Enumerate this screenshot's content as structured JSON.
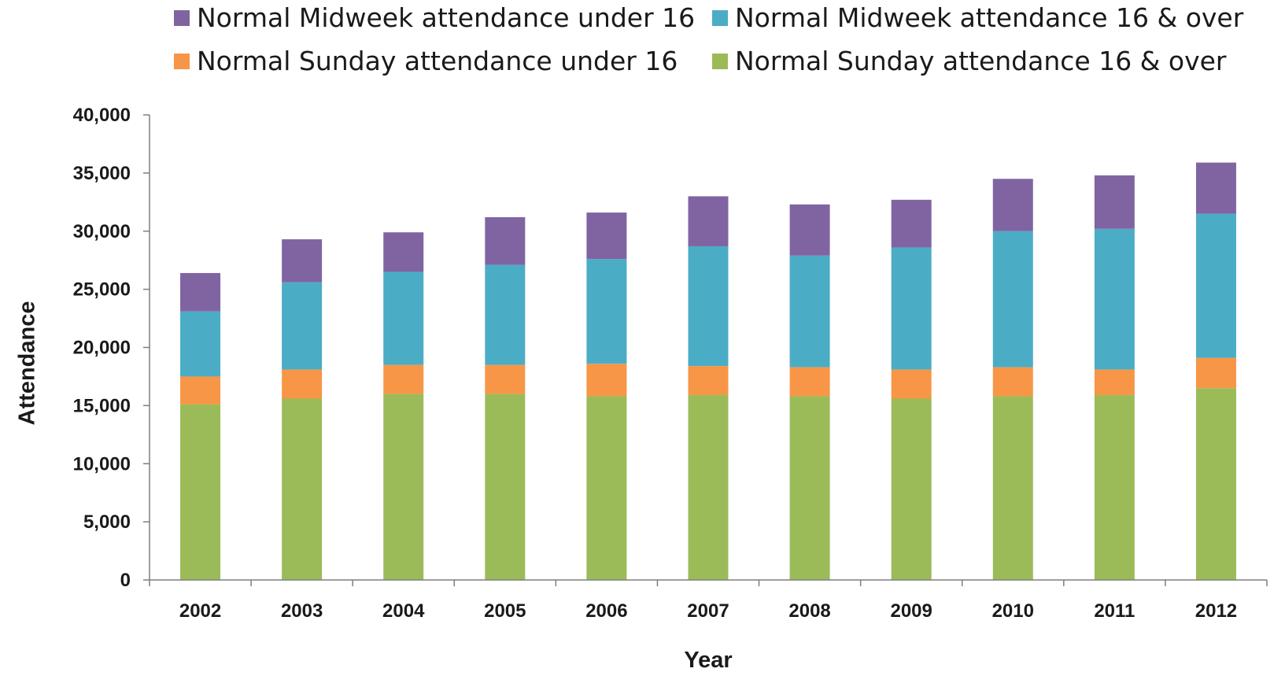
{
  "chart_data": {
    "type": "bar",
    "stacked": true,
    "title": "",
    "xlabel": "Year",
    "ylabel": "Attendance",
    "ylim": [
      0,
      40000
    ],
    "yticks": [
      0,
      5000,
      10000,
      15000,
      20000,
      25000,
      30000,
      35000,
      40000
    ],
    "ytick_labels": [
      "0",
      "5,000",
      "10,000",
      "15,000",
      "20,000",
      "25,000",
      "30,000",
      "35,000",
      "40,000"
    ],
    "grid": false,
    "legend_position": "top",
    "categories": [
      "2002",
      "2003",
      "2004",
      "2005",
      "2006",
      "2007",
      "2008",
      "2009",
      "2010",
      "2011",
      "2012"
    ],
    "series": [
      {
        "name": "Normal Sunday attendance 16 & over",
        "color": "#9bbb59",
        "values": [
          15100,
          15600,
          16000,
          16000,
          15800,
          15900,
          15800,
          15600,
          15800,
          15900,
          16500
        ]
      },
      {
        "name": "Normal Sunday attendance under 16",
        "color": "#f79646",
        "values": [
          2400,
          2500,
          2500,
          2500,
          2800,
          2500,
          2500,
          2500,
          2500,
          2200,
          2600
        ]
      },
      {
        "name": "Normal Midweek attendance 16 & over",
        "color": "#4bacc6",
        "values": [
          5600,
          7500,
          8000,
          8600,
          9000,
          10300,
          9600,
          10500,
          11700,
          12100,
          12400
        ]
      },
      {
        "name": "Normal Midweek attendance under 16",
        "color": "#8064a2",
        "values": [
          3300,
          3700,
          3400,
          4100,
          4000,
          4300,
          4400,
          4100,
          4500,
          4600,
          4400
        ]
      }
    ],
    "legend_order": [
      "Normal Midweek attendance under 16",
      "Normal Midweek attendance 16 & over",
      "Normal Sunday attendance under 16",
      "Normal Sunday attendance 16 & over"
    ]
  }
}
